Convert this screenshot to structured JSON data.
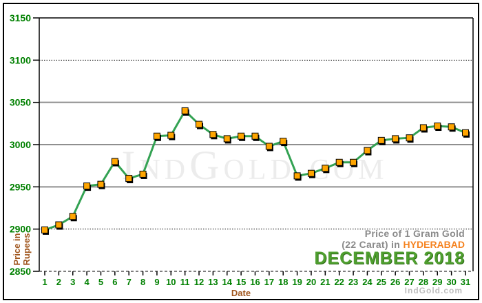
{
  "watermark": {
    "text": "IndGold.com"
  },
  "branding": {
    "text": "IndGold.com"
  },
  "title": {
    "line1": "Price of 1 Gram Gold",
    "line2_prefix": "(22 Carat) in",
    "line2_highlight": "HYDERABAD",
    "line3": "DECEMBER 2018"
  },
  "colors": {
    "axis_label_green": "#008000",
    "axis_name_brown": "#a0561e",
    "line_green": "#33a253",
    "marker_orange": "#ffa500",
    "marker_shadow": "#000000",
    "grid_gray": "#8f8f8f",
    "title_gray": "#8a8a8a",
    "city_orange": "#f5821f",
    "month_green": "#4f9f2f",
    "watermark_gray": "#ececec"
  },
  "chart_data": {
    "type": "line",
    "title": "Price of 1 Gram Gold (22 Carat) in HYDERABAD - DECEMBER 2018",
    "xlabel": "Date",
    "ylabel": "Price in Rupees",
    "x": [
      1,
      2,
      3,
      4,
      5,
      6,
      7,
      8,
      9,
      10,
      11,
      12,
      13,
      14,
      15,
      16,
      17,
      18,
      19,
      20,
      21,
      22,
      23,
      24,
      25,
      26,
      27,
      28,
      29,
      30,
      31
    ],
    "values": [
      2899,
      2905,
      2915,
      2951,
      2953,
      2980,
      2960,
      2965,
      3010,
      3011,
      3040,
      3024,
      3012,
      3007,
      3010,
      3010,
      2998,
      3004,
      2963,
      2966,
      2972,
      2979,
      2979,
      2993,
      3005,
      3007,
      3008,
      3020,
      3022,
      3021,
      3014
    ],
    "ylim": [
      2850,
      3150
    ],
    "yticks": [
      3150,
      3100,
      3050,
      3000,
      2950,
      2900,
      2850
    ],
    "grid": true,
    "legend": "none",
    "marker": "square"
  }
}
